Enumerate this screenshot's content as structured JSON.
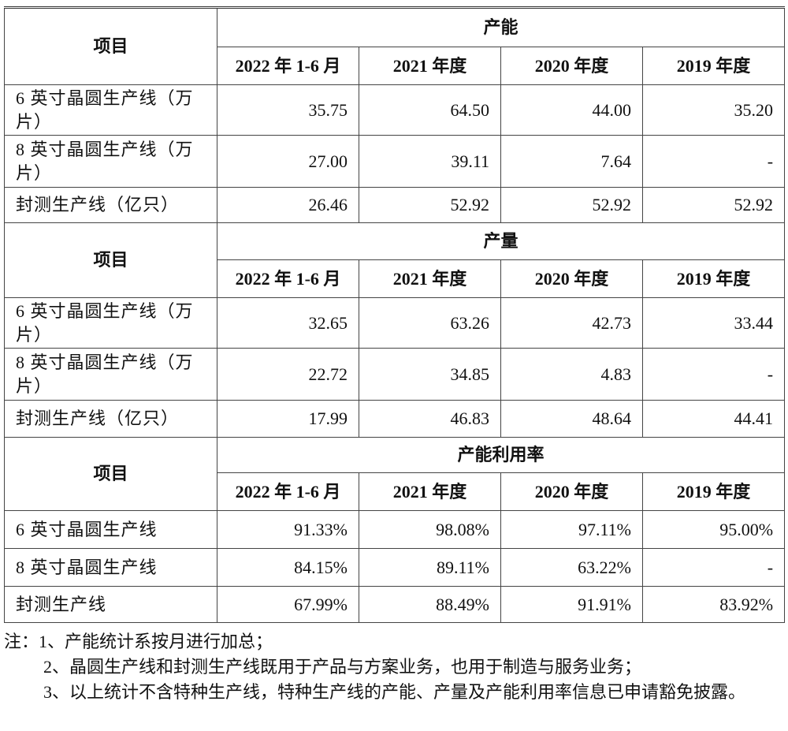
{
  "sections": [
    {
      "item_header": "项目",
      "title": "产能",
      "years": [
        "2022 年 1-6 月",
        "2021 年度",
        "2020 年度",
        "2019 年度"
      ],
      "rows": [
        [
          "6 英寸晶圆生产线（万片）",
          "35.75",
          "64.50",
          "44.00",
          "35.20"
        ],
        [
          "8 英寸晶圆生产线（万片）",
          "27.00",
          "39.11",
          "7.64",
          "-"
        ],
        [
          "封测生产线（亿只）",
          "26.46",
          "52.92",
          "52.92",
          "52.92"
        ]
      ]
    },
    {
      "item_header": "项目",
      "title": "产量",
      "years": [
        "2022 年 1-6 月",
        "2021 年度",
        "2020 年度",
        "2019 年度"
      ],
      "rows": [
        [
          "6 英寸晶圆生产线（万片）",
          "32.65",
          "63.26",
          "42.73",
          "33.44"
        ],
        [
          "8 英寸晶圆生产线（万片）",
          "22.72",
          "34.85",
          "4.83",
          "-"
        ],
        [
          "封测生产线（亿只）",
          "17.99",
          "46.83",
          "48.64",
          "44.41"
        ]
      ]
    },
    {
      "item_header": "项目",
      "title": "产能利用率",
      "years": [
        "2022 年 1-6 月",
        "2021 年度",
        "2020 年度",
        "2019 年度"
      ],
      "rows": [
        [
          "6 英寸晶圆生产线",
          "91.33%",
          "98.08%",
          "97.11%",
          "95.00%"
        ],
        [
          "8 英寸晶圆生产线",
          "84.15%",
          "89.11%",
          "63.22%",
          "-"
        ],
        [
          "封测生产线",
          "67.99%",
          "88.49%",
          "91.91%",
          "83.92%"
        ]
      ]
    }
  ],
  "notes": [
    "注：1、产能统计系按月进行加总；",
    "2、晶圆生产线和封测生产线既用于产品与方案业务，也用于制造与服务业务；",
    "3、以上统计不含特种生产线，特种生产线的产能、产量及产能利用率信息已申请豁免披露。"
  ]
}
